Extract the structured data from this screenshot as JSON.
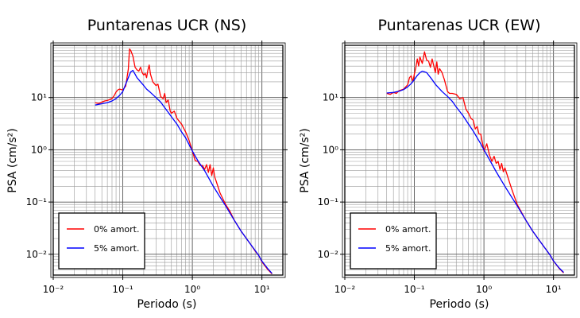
{
  "chart_data": [
    {
      "type": "line",
      "title": "Puntarenas UCR (NS)",
      "xlabel": "Periodo (s)",
      "ylabel": "PSA (cm/s²)",
      "xscale": "log",
      "yscale": "log",
      "xlim": [
        0.01,
        20
      ],
      "ylim": [
        0.004,
        100
      ],
      "grid": true,
      "legend_position": "bottom-left",
      "x_ticks": [
        "10⁻²",
        "10⁻¹",
        "10⁰",
        "10¹"
      ],
      "y_ticks": [
        "10⁻²",
        "10⁻¹",
        "10⁰",
        "10¹"
      ],
      "series": [
        {
          "name": "0% amort.",
          "color": "#ff0000",
          "x": [
            0.04,
            0.045,
            0.05,
            0.055,
            0.06,
            0.065,
            0.07,
            0.075,
            0.08,
            0.085,
            0.09,
            0.1,
            0.11,
            0.12,
            0.125,
            0.13,
            0.14,
            0.15,
            0.16,
            0.17,
            0.18,
            0.19,
            0.2,
            0.21,
            0.22,
            0.23,
            0.24,
            0.25,
            0.27,
            0.3,
            0.32,
            0.35,
            0.38,
            0.4,
            0.42,
            0.45,
            0.48,
            0.5,
            0.55,
            0.6,
            0.65,
            0.7,
            0.8,
            0.9,
            1.0,
            1.1,
            1.2,
            1.3,
            1.4,
            1.5,
            1.6,
            1.7,
            1.8,
            1.9,
            2.0,
            2.1,
            2.2,
            2.5,
            3.0,
            3.5,
            4.0,
            5.0,
            6.0,
            7.0,
            8.0,
            9.0,
            10.0,
            12.0,
            14.0
          ],
          "values": [
            8.0,
            7.7,
            8.2,
            8.6,
            8.8,
            9.2,
            9.6,
            10.8,
            12.8,
            14.0,
            14.5,
            14.0,
            16.5,
            35,
            85,
            80,
            62,
            38,
            34,
            32,
            38,
            30,
            27,
            29,
            24,
            34,
            42,
            28,
            20,
            17,
            18,
            10.5,
            9.5,
            12.0,
            8.0,
            9.0,
            5.5,
            5.0,
            5.5,
            4.0,
            3.5,
            3.1,
            2.2,
            1.5,
            0.95,
            0.62,
            0.6,
            0.5,
            0.5,
            0.42,
            0.52,
            0.37,
            0.52,
            0.32,
            0.45,
            0.3,
            0.25,
            0.15,
            0.09,
            0.065,
            0.045,
            0.028,
            0.02,
            0.015,
            0.0115,
            0.0095,
            0.0072,
            0.0052,
            0.0042
          ]
        },
        {
          "name": "5% amort.",
          "color": "#0000ff",
          "x": [
            0.04,
            0.05,
            0.06,
            0.07,
            0.08,
            0.09,
            0.1,
            0.11,
            0.12,
            0.13,
            0.14,
            0.15,
            0.16,
            0.18,
            0.2,
            0.22,
            0.25,
            0.3,
            0.35,
            0.4,
            0.5,
            0.6,
            0.7,
            0.8,
            0.9,
            1.0,
            1.2,
            1.5,
            2.0,
            2.5,
            3.0,
            4.0,
            5.0,
            6.0,
            7.0,
            8.0,
            9.0,
            10.0,
            12.0,
            14.0
          ],
          "values": [
            7.2,
            7.6,
            8.0,
            8.6,
            9.6,
            11.0,
            13.0,
            18,
            24,
            31,
            33,
            28,
            24,
            20,
            17,
            14.5,
            12.5,
            10,
            8.2,
            6.4,
            4.3,
            3.1,
            2.2,
            1.7,
            1.25,
            0.95,
            0.62,
            0.4,
            0.2,
            0.125,
            0.085,
            0.045,
            0.028,
            0.02,
            0.015,
            0.0118,
            0.0095,
            0.0074,
            0.0054,
            0.0043
          ]
        }
      ]
    },
    {
      "type": "line",
      "title": "Puntarenas UCR (EW)",
      "xlabel": "Periodo (s)",
      "ylabel": "PSA (cm/s²)",
      "xscale": "log",
      "yscale": "log",
      "xlim": [
        0.01,
        20
      ],
      "ylim": [
        0.004,
        100
      ],
      "grid": true,
      "legend_position": "bottom-left",
      "x_ticks": [
        "10⁻²",
        "10⁻¹",
        "10⁰",
        "10¹"
      ],
      "y_ticks": [
        "10⁻²",
        "10⁻¹",
        "10⁰",
        "10¹"
      ],
      "series": [
        {
          "name": "0% amort.",
          "color": "#ff0000",
          "x": [
            0.04,
            0.045,
            0.05,
            0.055,
            0.06,
            0.065,
            0.07,
            0.075,
            0.08,
            0.085,
            0.09,
            0.095,
            0.1,
            0.105,
            0.11,
            0.115,
            0.12,
            0.13,
            0.14,
            0.15,
            0.16,
            0.17,
            0.18,
            0.19,
            0.2,
            0.21,
            0.22,
            0.23,
            0.25,
            0.27,
            0.3,
            0.32,
            0.35,
            0.4,
            0.45,
            0.5,
            0.55,
            0.6,
            0.65,
            0.7,
            0.75,
            0.8,
            0.85,
            0.9,
            1.0,
            1.1,
            1.2,
            1.3,
            1.4,
            1.5,
            1.6,
            1.7,
            1.8,
            1.9,
            2.0,
            2.5,
            3.0,
            4.0,
            5.0,
            6.0,
            7.0,
            8.0,
            9.0,
            10.0,
            12.0,
            14.0
          ],
          "values": [
            12.0,
            11.5,
            12.5,
            12.0,
            13.5,
            14.0,
            14.5,
            16.0,
            17.5,
            24,
            26,
            20,
            28,
            38,
            55,
            40,
            60,
            45,
            75,
            52,
            50,
            38,
            55,
            40,
            30,
            48,
            28,
            36,
            30,
            22,
            13,
            12,
            12,
            11.5,
            9.5,
            10,
            6.0,
            5.0,
            4.0,
            3.7,
            2.5,
            2.8,
            2.0,
            2.0,
            0.95,
            1.3,
            0.8,
            0.6,
            0.75,
            0.55,
            0.6,
            0.42,
            0.55,
            0.38,
            0.45,
            0.18,
            0.09,
            0.045,
            0.028,
            0.02,
            0.015,
            0.0118,
            0.0095,
            0.0074,
            0.0054,
            0.0044
          ]
        },
        {
          "name": "5% amort.",
          "color": "#0000ff",
          "x": [
            0.04,
            0.05,
            0.06,
            0.07,
            0.08,
            0.09,
            0.1,
            0.11,
            0.12,
            0.13,
            0.14,
            0.15,
            0.16,
            0.18,
            0.2,
            0.25,
            0.3,
            0.35,
            0.4,
            0.5,
            0.6,
            0.7,
            0.8,
            0.9,
            1.0,
            1.2,
            1.5,
            2.0,
            2.5,
            3.0,
            4.0,
            5.0,
            6.0,
            7.0,
            8.0,
            9.0,
            10.0,
            12.0,
            14.0
          ],
          "values": [
            12.2,
            12.5,
            13.2,
            14.2,
            16.0,
            18.5,
            22,
            26.5,
            30,
            32,
            31,
            30,
            27,
            22,
            18,
            13,
            10.5,
            8.5,
            6.6,
            4.5,
            3.1,
            2.3,
            1.7,
            1.3,
            1.0,
            0.65,
            0.38,
            0.2,
            0.125,
            0.085,
            0.045,
            0.028,
            0.02,
            0.015,
            0.0118,
            0.0095,
            0.0075,
            0.0055,
            0.0045
          ]
        }
      ]
    }
  ]
}
